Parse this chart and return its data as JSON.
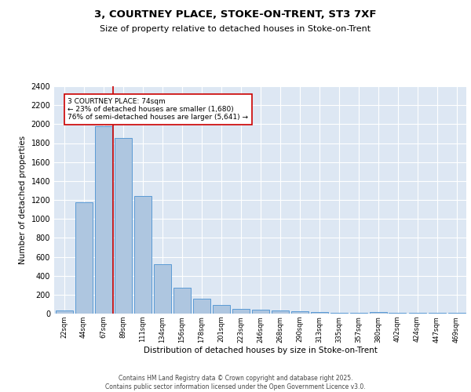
{
  "title_line1": "3, COURTNEY PLACE, STOKE-ON-TRENT, ST3 7XF",
  "title_line2": "Size of property relative to detached houses in Stoke-on-Trent",
  "xlabel": "Distribution of detached houses by size in Stoke-on-Trent",
  "ylabel": "Number of detached properties",
  "categories": [
    "22sqm",
    "44sqm",
    "67sqm",
    "89sqm",
    "111sqm",
    "134sqm",
    "156sqm",
    "178sqm",
    "201sqm",
    "223sqm",
    "246sqm",
    "268sqm",
    "290sqm",
    "313sqm",
    "335sqm",
    "357sqm",
    "380sqm",
    "402sqm",
    "424sqm",
    "447sqm",
    "469sqm"
  ],
  "values": [
    30,
    1175,
    1975,
    1855,
    1240,
    520,
    275,
    160,
    90,
    50,
    40,
    35,
    25,
    20,
    10,
    5,
    15,
    5,
    5,
    5,
    5
  ],
  "bar_color": "#aec6e0",
  "bar_edge_color": "#5b9bd5",
  "background_color": "#dde7f3",
  "grid_color": "#ffffff",
  "red_line_x": 2.5,
  "annotation_text": "3 COURTNEY PLACE: 74sqm\n← 23% of detached houses are smaller (1,680)\n76% of semi-detached houses are larger (5,641) →",
  "annotation_box_color": "#ffffff",
  "annotation_box_edge": "#cc0000",
  "red_line_color": "#cc0000",
  "ylim": [
    0,
    2400
  ],
  "yticks": [
    0,
    200,
    400,
    600,
    800,
    1000,
    1200,
    1400,
    1600,
    1800,
    2000,
    2200,
    2400
  ],
  "footer_line1": "Contains HM Land Registry data © Crown copyright and database right 2025.",
  "footer_line2": "Contains public sector information licensed under the Open Government Licence v3.0."
}
